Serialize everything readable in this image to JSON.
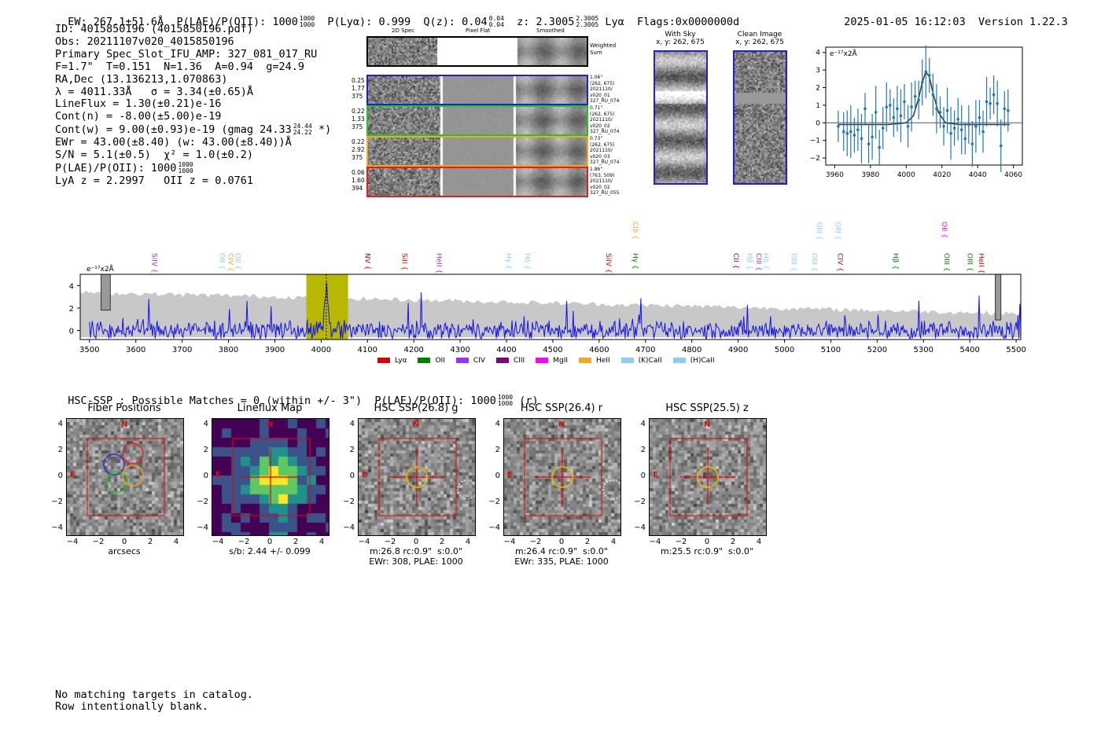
{
  "header": {
    "ew": "EW: 267.1±51.6Å",
    "plae_label": "P(LAE)/P(OII): 1000",
    "plae_hi": "1000",
    "plae_lo": "1000",
    "plya": "P(Lyα): 0.999",
    "qz_label": "Q(z): 0.04",
    "qz_hi": "0.04",
    "qz_lo": "0.04",
    "z_label": "z: 2.3005",
    "z_hi": "2.3005",
    "z_lo": "2.3005",
    "line": "Lyα",
    "flags": "Flags:0x0000000d",
    "datetime": "2025-01-05 16:12:03",
    "version": "Version 1.22.3"
  },
  "info": {
    "id": "ID: 4015850196 (4015850196.pdf)",
    "obs": "Obs: 20211107v020_4015850196",
    "primary": "Primary Spec_Slot_IFU_AMP: 327_081_017_RU",
    "params": "F=1.7\"  T=0.151  N=1.36  A=0.94  g=24.9",
    "radec": "RA,Dec (13.136213,1.070863)",
    "lambda_sigma": "λ = 4011.33Å   σ = 3.34(±0.65)Å",
    "lineflux": "LineFlux = 1.30(±0.21)e-16",
    "cont_n": "Cont(n) = -8.00(±5.00)e-19",
    "cont_w": "Cont(w) = 9.00(±0.93)e-19 (gmag 24.33",
    "cont_w_hi": "24.44",
    "cont_w_lo": "24.22",
    "cont_w_end": "*)",
    "ewr": "EWr = 43.00(±8.40) (w: 43.00(±8.40))Å",
    "sn": "S/N = 5.1(±0.5)  χ² = 1.0(±0.2)",
    "plae": "P(LAE)/P(OII): 1000",
    "plae_hi": "1000",
    "plae_lo": "1000",
    "z_lines": "LyA z = 2.2997   OII z = 0.0761"
  },
  "cutouts": {
    "col_2d": "2D Spec",
    "col_flat": "Pixel Flat",
    "col_smooth": "Smoothed",
    "weighted_label": "Weighted Sum",
    "with_sky_title": "With Sky",
    "with_sky_xy": "x, y: 262, 675",
    "clean_title": "Clean Image",
    "clean_xy": "x, y: 262, 675",
    "rows": [
      {
        "l1": "0.25",
        "l2": "1.77",
        "l3": "375",
        "r1": "1.06\"",
        "r2": "(262, 675)",
        "r3": "2021110/",
        "r4": "v020_01",
        "r5": "327_RU_074",
        "color": "#1f1fd0"
      },
      {
        "l1": "0.22",
        "l2": "1.33",
        "l3": "375",
        "r1": "0.71\"",
        "r2": "(262, 675)",
        "r3": "2021110/",
        "r4": "v020_02",
        "r5": "327_RU_074",
        "color": "#22c422"
      },
      {
        "l1": "0.22",
        "l2": "2.92",
        "l3": "375",
        "r1": "0.73\"",
        "r2": "(262, 675)",
        "r3": "2021110/",
        "r4": "v020_03",
        "r5": "327_RU_074",
        "color": "#f5a623"
      },
      {
        "l1": "0.06",
        "l2": "1.60",
        "l3": "394",
        "r1": "1.86\"",
        "r2": "(763, 509)",
        "r3": "2021110/",
        "r4": "v020_02",
        "r5": "327_RU_055",
        "color": "#e02020"
      }
    ]
  },
  "zoom_chart": {
    "unit": "e⁻¹⁷x2Å",
    "x_ticks": [
      "3960",
      "3980",
      "4000",
      "4020",
      "4040",
      "4060"
    ],
    "y_ticks": [
      "4",
      "3",
      "2",
      "1",
      "0",
      "−1",
      "−2"
    ]
  },
  "spectrum": {
    "unit": "e⁻¹⁷x2Å",
    "x_ticks": [
      "3500",
      "3600",
      "3700",
      "3800",
      "3900",
      "4000",
      "4100",
      "4200",
      "4300",
      "4400",
      "4500",
      "4600",
      "4700",
      "4800",
      "4900",
      "5000",
      "5100",
      "5200",
      "5300",
      "5400",
      "5500"
    ],
    "y_ticks": [
      "4",
      "2",
      "0"
    ],
    "line_labels": [
      {
        "name": "SiIV",
        "w": 3630,
        "color": "#9b30ff",
        "row": 1
      },
      {
        "name": "OII",
        "w": 3776,
        "color": "#87cefa",
        "row": 1
      },
      {
        "name": "CIV",
        "w": 3795,
        "color": "#f5a623",
        "row": 1
      },
      {
        "name": "OII",
        "w": 3810,
        "color": "#87cefa",
        "row": 1
      },
      {
        "name": "NV",
        "w": 4090,
        "color": "#e00000",
        "row": 1
      },
      {
        "name": "SiII",
        "w": 4170,
        "color": "#e00000",
        "row": 1
      },
      {
        "name": "HeII",
        "w": 4245,
        "color": "#9b30ff",
        "row": 1
      },
      {
        "name": "Hγ",
        "w": 4395,
        "color": "#87cefa",
        "row": 1
      },
      {
        "name": "Hδ",
        "w": 4435,
        "color": "#87cefa",
        "row": 1
      },
      {
        "name": "SiIV",
        "w": 4610,
        "color": "#e00000",
        "row": 1
      },
      {
        "name": "CIII",
        "w": 4668,
        "color": "#f5a623",
        "row": 0
      },
      {
        "name": "Hγ",
        "w": 4668,
        "color": "#008000",
        "row": 1
      },
      {
        "name": "CII",
        "w": 4885,
        "color": "#800080",
        "row": 1
      },
      {
        "name": "Hβ",
        "w": 4915,
        "color": "#87cefa",
        "row": 1
      },
      {
        "name": "CIII",
        "w": 4935,
        "color": "#9b30ff",
        "row": 1
      },
      {
        "name": "Hδ",
        "w": 4950,
        "color": "#87cefa",
        "row": 1
      },
      {
        "name": "OIII",
        "w": 5010,
        "color": "#87cefa",
        "row": 1
      },
      {
        "name": "OIII",
        "w": 5055,
        "color": "#87cefa",
        "row": 1
      },
      {
        "name": "OIII",
        "w": 5065,
        "color": "#87cefa",
        "row": 0
      },
      {
        "name": "OIII",
        "w": 5105,
        "color": "#87cefa",
        "row": 0
      },
      {
        "name": "CIV",
        "w": 5110,
        "color": "#e00000",
        "row": 1
      },
      {
        "name": "Hβ",
        "w": 5230,
        "color": "#008000",
        "row": 1
      },
      {
        "name": "OII",
        "w": 5335,
        "color": "#ff00ff",
        "row": 0
      },
      {
        "name": "OIII",
        "w": 5340,
        "color": "#008000",
        "row": 1
      },
      {
        "name": "OIII",
        "w": 5390,
        "color": "#008000",
        "row": 1
      },
      {
        "name": "HeII",
        "w": 5415,
        "color": "#e00000",
        "row": 1
      }
    ],
    "legend": [
      {
        "label": "Lyα",
        "color": "#e00000"
      },
      {
        "label": "OII",
        "color": "#008000"
      },
      {
        "label": "CIV",
        "color": "#9b30ff"
      },
      {
        "label": "CIII",
        "color": "#800080"
      },
      {
        "label": "MgII",
        "color": "#ff00ff"
      },
      {
        "label": "HeII",
        "color": "#f5a623"
      },
      {
        "label": "(K)CaII",
        "color": "#87cefa"
      },
      {
        "label": "(H)CaII",
        "color": "#87cefa"
      }
    ]
  },
  "hsc": {
    "summary": "HSC-SSP : Possible Matches = 0 (within +/- 3\")  P(LAE)/P(OII): 1000",
    "summary_hi": "1000",
    "summary_lo": "1000",
    "summary_end": "(r)",
    "panels": [
      {
        "title": "Fiber Positions",
        "cap1": "arcsecs",
        "cap2": ""
      },
      {
        "title": "Lineflux Map",
        "cap1": "s/b: 2.44 +/- 0.099",
        "cap2": ""
      },
      {
        "title": "HSC SSP(26.8) g",
        "cap1": "m:26.8 rc:0.9\"  s:0.0\"",
        "cap2": "EWr: 308, PLAE: 1000"
      },
      {
        "title": "HSC SSP(26.4) r",
        "cap1": "m:26.4 rc:0.9\"  s:0.0\"",
        "cap2": "EWr: 335, PLAE: 1000"
      },
      {
        "title": "HSC SSP(25.5) z",
        "cap1": "m:25.5 rc:0.9\"  s:0.0\"",
        "cap2": ""
      }
    ],
    "ticks": [
      "4",
      "2",
      "0",
      "−2",
      "−4"
    ],
    "xticks": [
      "−4",
      "−2",
      "0",
      "2",
      "4"
    ],
    "n_label": "N",
    "e_label": "E"
  },
  "footer": {
    "line1": "No matching targets in catalog.",
    "line2": "Row intentionally blank."
  },
  "chart_data": [
    {
      "type": "scatter",
      "title": "",
      "xlabel": "",
      "ylabel": "e⁻¹⁷x2Å",
      "xlim": [
        3955,
        4065
      ],
      "ylim": [
        -2.4,
        4.3
      ],
      "x": [
        3962,
        3965,
        3967,
        3969,
        3971,
        3973,
        3975,
        3977,
        3979,
        3981,
        3983,
        3985,
        3987,
        3989,
        3991,
        3993,
        3995,
        3997,
        3999,
        4001,
        4003,
        4005,
        4007,
        4009,
        4011,
        4013,
        4015,
        4017,
        4019,
        4021,
        4023,
        4025,
        4027,
        4029,
        4031,
        4033,
        4035,
        4037,
        4039,
        4041,
        4043,
        4045,
        4047,
        4049,
        4051,
        4053,
        4055,
        4057
      ],
      "values": [
        -0.2,
        -0.5,
        -0.6,
        -0.5,
        -0.7,
        -0.4,
        -0.9,
        0.8,
        -1.2,
        -0.8,
        0.6,
        -1.4,
        -0.3,
        0.9,
        1.0,
        0.3,
        0.8,
        0.4,
        1.2,
        -0.2,
        0.9,
        1.5,
        1.3,
        2.3,
        2.9,
        2.7,
        1.6,
        0.8,
        0.6,
        -0.2,
        0.7,
        -0.6,
        -0.3,
        0.2,
        -0.4,
        -0.9,
        -0.1,
        -1.2,
        -0.2,
        0.3,
        -0.5,
        1.2,
        1.1,
        1.6,
        1.1,
        -1.3,
        0.8,
        0.7
      ],
      "series": [
        {
          "name": "gaussian fit",
          "x": [
            3962,
            3990,
            4000,
            4004,
            4007,
            4009,
            4011,
            4013,
            4015,
            4018,
            4022,
            4030,
            4058
          ],
          "values": [
            -0.1,
            -0.1,
            0.0,
            0.4,
            1.4,
            2.3,
            2.9,
            2.6,
            1.7,
            0.6,
            0.0,
            -0.1,
            -0.1
          ]
        }
      ]
    },
    {
      "type": "line",
      "title": "",
      "xlabel": "",
      "ylabel": "e⁻¹⁷x2Å",
      "xlim": [
        3480,
        5510
      ],
      "ylim": [
        -0.8,
        5.0
      ],
      "highlight_band": [
        3968,
        4058
      ],
      "peak": {
        "x": 4011,
        "y": 3.4
      },
      "noise_envelope": "grey band ~3 at blue end decreasing to ~1 at red end"
    }
  ]
}
